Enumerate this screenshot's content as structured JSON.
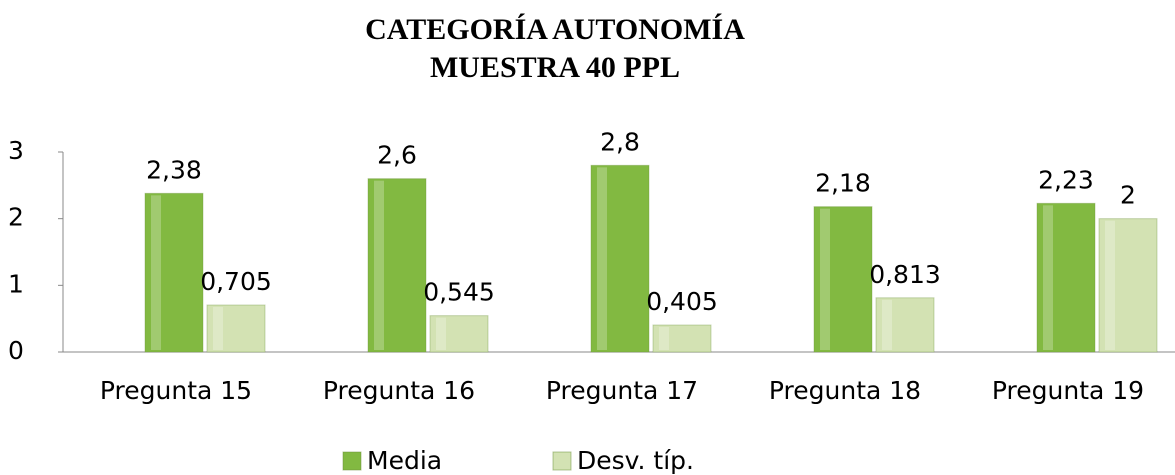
{
  "chart_data": {
    "type": "bar",
    "title": [
      "CATEGORÍA AUTONOMÍA",
      "MUESTRA 40 PPL"
    ],
    "categories": [
      "Pregunta 15",
      "Pregunta 16",
      "Pregunta 17",
      "Pregunta 18",
      "Pregunta 19"
    ],
    "series": [
      {
        "name": "Media",
        "color": "#82b941",
        "values": [
          2.38,
          2.6,
          2.8,
          2.18,
          2.23
        ],
        "value_labels": [
          "2,38",
          "2,6",
          "2,8",
          "2,18",
          "2,23"
        ]
      },
      {
        "name": "Desv. típ.",
        "color": "#d3e2b3",
        "values": [
          0.705,
          0.545,
          0.405,
          0.813,
          2
        ],
        "value_labels": [
          "0,705",
          "0,545",
          "0,405",
          "0,813",
          "2"
        ]
      }
    ],
    "ylim": [
      0,
      3
    ],
    "yticks": [
      0,
      1,
      2,
      3
    ],
    "grid": false,
    "legend": "bottom"
  }
}
